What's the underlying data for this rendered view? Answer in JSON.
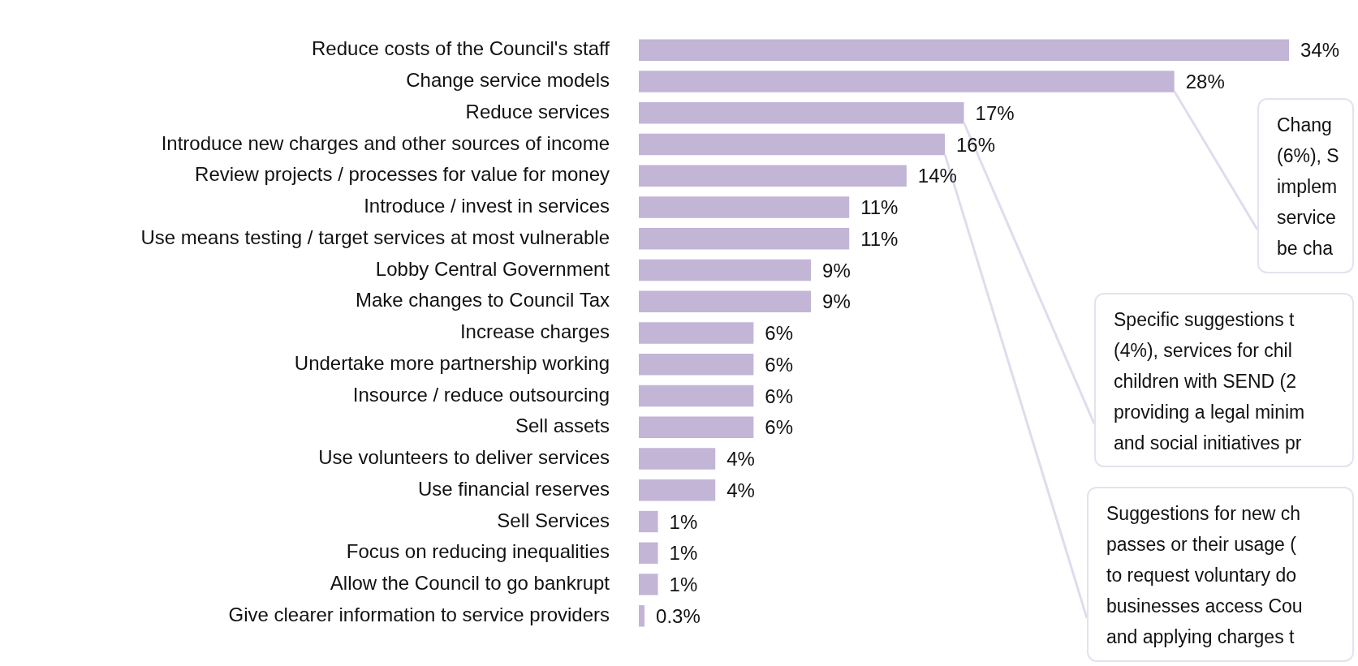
{
  "chart_data": {
    "type": "bar",
    "orientation": "horizontal",
    "data_labels": true,
    "legend": false,
    "color": "#c3b5d6",
    "categories": [
      "Reduce costs of the Council's staff",
      "Change service models",
      "Reduce services",
      "Introduce new charges and other sources of income",
      "Review projects / processes for value for money",
      "Introduce / invest in services",
      "Use means testing / target services at most vulnerable",
      "Lobby Central Government",
      "Make changes to Council Tax",
      "Increase charges",
      "Undertake more partnership working",
      "Insource / reduce outsourcing",
      "Sell assets",
      "Use volunteers to deliver services",
      "Use financial reserves",
      "Sell Services",
      "Focus on reducing inequalities",
      "Allow the Council to go bankrupt",
      "Give clearer information to service providers"
    ],
    "values": [
      34,
      28,
      17,
      16,
      14,
      11,
      11,
      9,
      9,
      6,
      6,
      6,
      6,
      4,
      4,
      1,
      1,
      1,
      0.3
    ],
    "value_labels": [
      "34%",
      "28%",
      "17%",
      "16%",
      "14%",
      "11%",
      "11%",
      "9%",
      "9%",
      "6%",
      "6%",
      "6%",
      "6%",
      "4%",
      "4%",
      "1%",
      "1%",
      "1%",
      "0.3%"
    ],
    "annotations": [
      {
        "text": "Chang\n(6%), S\nimplem\nservice\nbe cha",
        "x": 28,
        "y": "Change service models"
      },
      {
        "text": "Specific suggestions t\n(4%), services for chil\nchildren with SEND (2\nproviding a legal minim\nand social initiatives pr",
        "x": 17,
        "y": "Reduce services"
      },
      {
        "text": "Suggestions for new ch\npasses or their usage (\nto request voluntary do\nbusinesses access Cou\nand applying charges t",
        "x": 16,
        "y": "Introduce new charges and other sources of income"
      }
    ]
  }
}
